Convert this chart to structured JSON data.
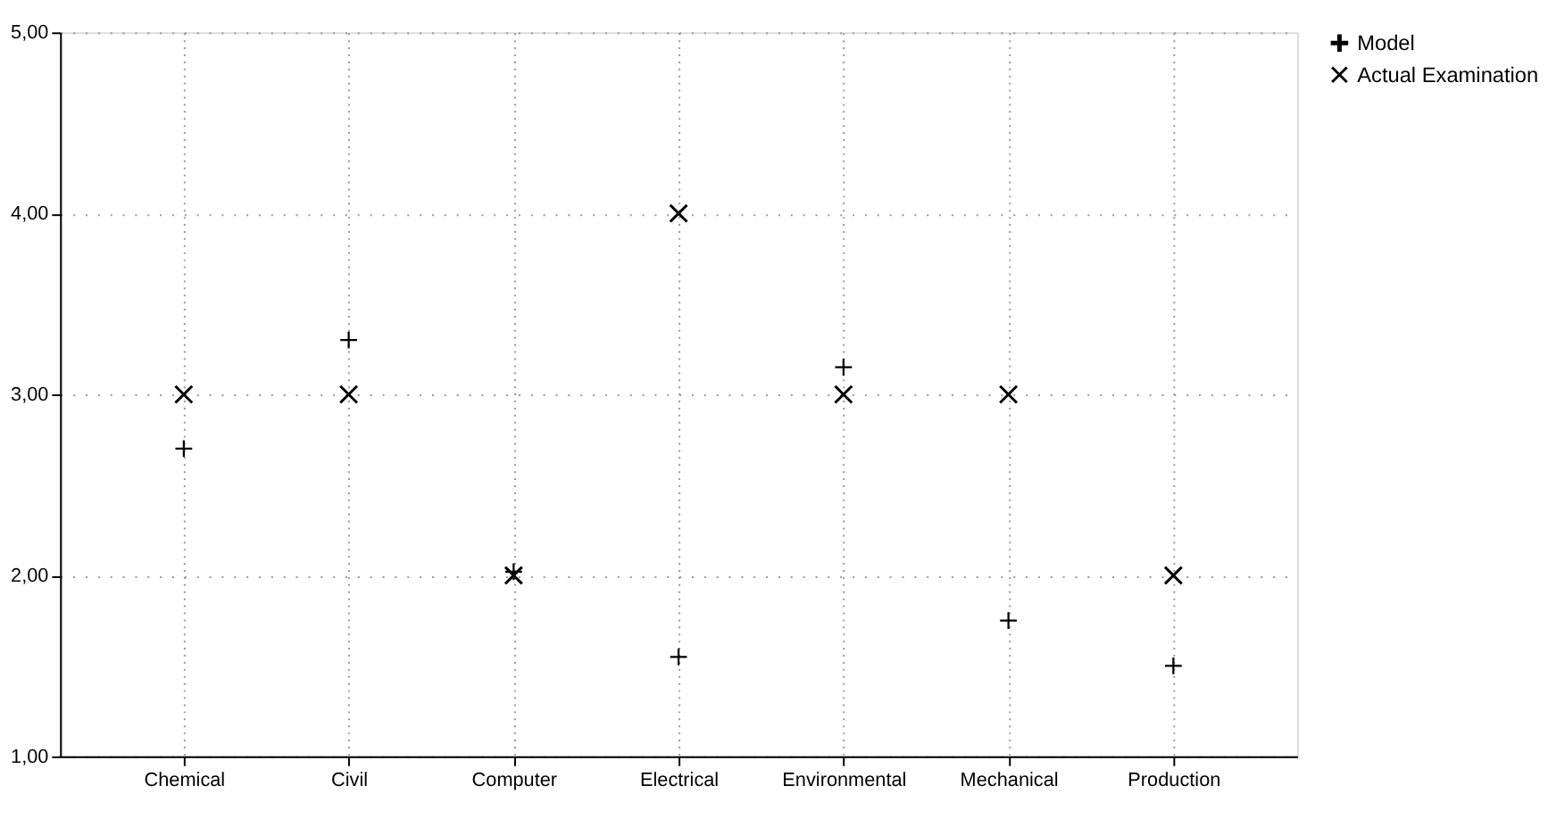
{
  "chart_data": {
    "type": "scatter",
    "categories": [
      "Chemical",
      "Civil",
      "Computer",
      "Electrical",
      "Environmental",
      "Mechanical",
      "Production"
    ],
    "series": [
      {
        "name": "Model",
        "color": "#000000",
        "marker": "cross",
        "values": [
          2.7,
          3.3,
          2.02,
          1.55,
          3.15,
          1.75,
          1.5
        ]
      },
      {
        "name": "Actual Examination",
        "color": "#000000",
        "marker": "x",
        "values": [
          3.0,
          3.0,
          2.0,
          4.0,
          3.0,
          3.0,
          2.0
        ]
      }
    ],
    "ylim": [
      1,
      5
    ],
    "yticks": [
      {
        "value": 1,
        "label": "1,00"
      },
      {
        "value": 2,
        "label": "2,00"
      },
      {
        "value": 3,
        "label": "3,00"
      },
      {
        "value": 4,
        "label": "4,00"
      },
      {
        "value": 5,
        "label": "5,00"
      }
    ],
    "grid": true,
    "legend": "top right"
  }
}
